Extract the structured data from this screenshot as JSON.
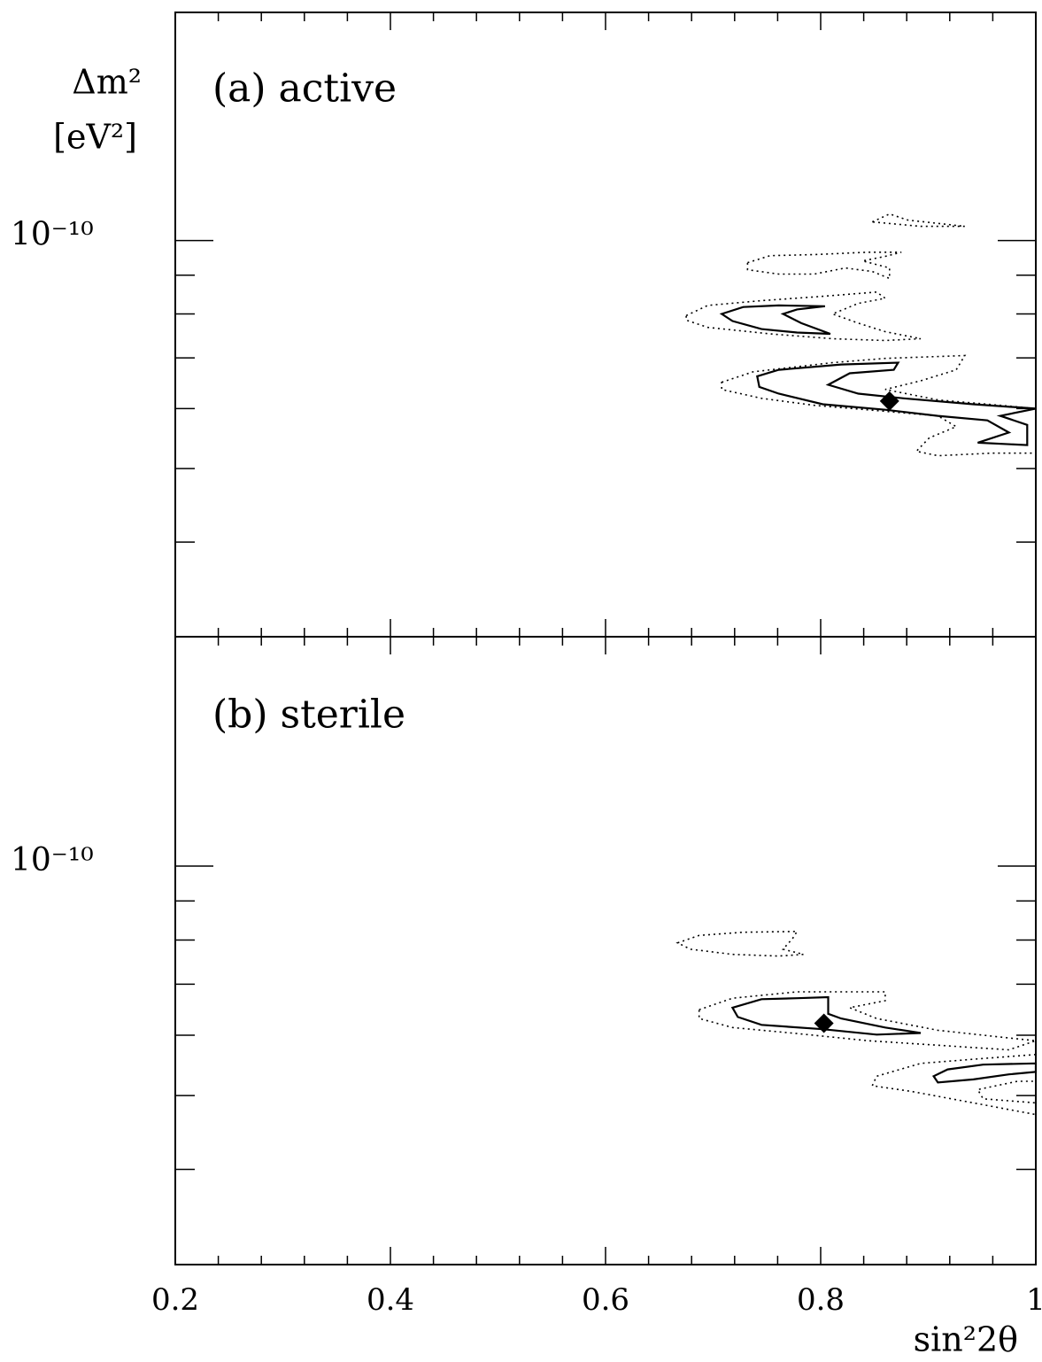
{
  "chart_data": [
    {
      "type": "contour",
      "title": "(a) active",
      "ylabel": "Δm²",
      "yunit": "[eV²]",
      "xlim": [
        0.2,
        1
      ],
      "xticks": [
        0.2,
        0.4,
        0.6,
        0.8,
        1
      ],
      "xminor_ticks": [
        0.24,
        0.28,
        0.32,
        0.36,
        0.44,
        0.48,
        0.52,
        0.56,
        0.64,
        0.68,
        0.72,
        0.76,
        0.84,
        0.88,
        0.92,
        0.96
      ],
      "ylim": [
        3e-11,
        2e-10
      ],
      "log_y": true,
      "yticks": [
        {
          "value": 1e-10,
          "label": "10⁻¹⁰"
        }
      ],
      "yminor_ticks": [
        9e-11,
        8e-11,
        7e-11,
        6e-11,
        5e-11,
        4e-11
      ],
      "contours": [
        {
          "style": "dotted",
          "x": [
            0.848,
            0.864,
            0.881,
            0.934,
            0.893
          ],
          "y": [
            1.058e-10,
            1.084e-10,
            1.064e-10,
            1.044e-10,
            1.044e-10
          ]
        },
        {
          "style": "dotted",
          "x": [
            0.732,
            0.753,
            0.794,
            0.844,
            0.875,
            0.86,
            0.839,
            0.864,
            0.864,
            0.848,
            0.823,
            0.794,
            0.761,
            0.732
          ],
          "y": [
            9.35e-11,
            9.55e-11,
            9.58e-11,
            9.65e-11,
            9.65e-11,
            9.53e-11,
            9.4e-11,
            9.2e-11,
            8.91e-11,
            9.1e-11,
            9.2e-11,
            9.03e-11,
            9.03e-11,
            9.15e-11
          ]
        },
        {
          "style": "dotted",
          "x": [
            0.675,
            0.695,
            0.745,
            0.802,
            0.852,
            0.86,
            0.835,
            0.811,
            0.835,
            0.86,
            0.893,
            0.86,
            0.811,
            0.753,
            0.695,
            0.675
          ],
          "y": [
            7.96e-11,
            8.21e-11,
            8.33e-11,
            8.44e-11,
            8.55e-11,
            8.39e-11,
            8.26e-11,
            8e-11,
            7.78e-11,
            7.58e-11,
            7.42e-11,
            7.38e-11,
            7.42e-11,
            7.53e-11,
            7.68e-11,
            7.85e-11
          ]
        },
        {
          "style": "solid",
          "x": [
            0.708,
            0.728,
            0.761,
            0.804,
            0.778,
            0.765,
            0.782,
            0.809,
            0.778,
            0.745,
            0.718
          ],
          "y": [
            8e-11,
            8.17e-11,
            8.21e-11,
            8.19e-11,
            8.11e-11,
            8e-11,
            7.78e-11,
            7.53e-11,
            7.56e-11,
            7.64e-11,
            7.83e-11
          ]
        },
        {
          "style": "dotted",
          "x": [
            0.708,
            0.737,
            0.811,
            0.86,
            0.934,
            0.926,
            0.893,
            0.86,
            0.909,
            0.967,
            1.0,
            1.0,
            0.959,
            0.909,
            0.889,
            0.901,
            0.926,
            0.909,
            0.86,
            0.794,
            0.745,
            0.708
          ],
          "y": [
            6.5e-11,
            6.71e-11,
            6.9e-11,
            6.99e-11,
            7.05e-11,
            6.75e-11,
            6.53e-11,
            6.36e-11,
            6.16e-11,
            6.06e-11,
            6e-11,
            5.24e-11,
            5.24e-11,
            5.2e-11,
            5.27e-11,
            5.49e-11,
            5.68e-11,
            5.87e-11,
            5.95e-11,
            6.06e-11,
            6.19e-11,
            6.36e-11
          ]
        },
        {
          "style": "solid",
          "x": [
            0.741,
            0.761,
            0.819,
            0.872,
            0.868,
            0.827,
            0.807,
            0.835,
            0.877,
            0.942,
            1.0,
            0.967,
            0.992,
            0.992,
            0.946,
            0.975,
            0.955,
            0.909,
            0.86,
            0.802,
            0.761,
            0.743
          ],
          "y": [
            6.62e-11,
            6.75e-11,
            6.86e-11,
            6.9e-11,
            6.75e-11,
            6.68e-11,
            6.45e-11,
            6.28e-11,
            6.19e-11,
            6.08e-11,
            6e-11,
            5.87e-11,
            5.71e-11,
            5.37e-11,
            5.41e-11,
            5.58e-11,
            5.79e-11,
            5.87e-11,
            5.98e-11,
            6.08e-11,
            6.28e-11,
            6.41e-11
          ]
        }
      ],
      "best_fit": {
        "x": 0.864,
        "y": 6.14e-11
      }
    },
    {
      "type": "contour",
      "title": "(b) sterile",
      "xlabel": "sin²2θ",
      "xlim": [
        0.2,
        1
      ],
      "xticks": [
        0.2,
        0.4,
        0.6,
        0.8,
        1
      ],
      "xminor_ticks": [
        0.24,
        0.28,
        0.32,
        0.36,
        0.44,
        0.48,
        0.52,
        0.56,
        0.64,
        0.68,
        0.72,
        0.76,
        0.84,
        0.88,
        0.92,
        0.96
      ],
      "ylim": [
        3e-11,
        2e-10
      ],
      "log_y": true,
      "yticks": [
        {
          "value": 1e-10,
          "label": "10⁻¹⁰"
        }
      ],
      "yminor_ticks": [
        9e-11,
        8e-11,
        7e-11,
        6e-11,
        5e-11,
        4e-11
      ],
      "contours": [
        {
          "style": "dotted",
          "x": [
            0.667,
            0.687,
            0.728,
            0.778,
            0.774,
            0.765,
            0.784,
            0.761,
            0.718,
            0.679
          ],
          "y": [
            7.93e-11,
            8.11e-11,
            8.19e-11,
            8.21e-11,
            8.04e-11,
            7.78e-11,
            7.66e-11,
            7.62e-11,
            7.66e-11,
            7.78e-11
          ]
        },
        {
          "style": "dotted",
          "x": [
            0.687,
            0.718,
            0.778,
            0.86,
            0.86,
            0.827,
            0.852,
            0.909,
            0.975,
            1.0,
            0.975,
            0.909,
            0.844,
            0.778,
            0.718,
            0.687
          ],
          "y": [
            6.48e-11,
            6.71e-11,
            6.84e-11,
            6.84e-11,
            6.66e-11,
            6.52e-11,
            6.31e-11,
            6.09e-11,
            5.95e-11,
            5.9e-11,
            5.74e-11,
            5.82e-11,
            5.9e-11,
            6.03e-11,
            6.14e-11,
            6.31e-11
          ]
        },
        {
          "style": "dotted",
          "x": [
            1.0,
            0.942,
            0.893,
            0.852,
            0.848,
            0.885,
            0.942,
            1.0,
            1.0,
            0.951,
            0.946,
            0.983,
            1.0
          ],
          "y": [
            5.66e-11,
            5.58e-11,
            5.51e-11,
            5.3e-11,
            5.15e-11,
            5.06e-11,
            4.89e-11,
            4.72e-11,
            4.89e-11,
            4.95e-11,
            5.09e-11,
            5.22e-11,
            5.22e-11
          ]
        },
        {
          "style": "solid",
          "x": [
            0.718,
            0.745,
            0.778,
            0.807,
            0.807,
            0.819,
            0.86,
            0.893,
            0.852,
            0.802,
            0.745,
            0.723
          ],
          "y": [
            6.52e-11,
            6.69e-11,
            6.71e-11,
            6.73e-11,
            6.4e-11,
            6.31e-11,
            6.14e-11,
            6.04e-11,
            6.01e-11,
            6.11e-11,
            6.19e-11,
            6.34e-11
          ]
        },
        {
          "style": "solid",
          "x": [
            1.0,
            0.951,
            0.918,
            0.905,
            0.909,
            0.942,
            0.975,
            1.0
          ],
          "y": [
            5.51e-11,
            5.49e-11,
            5.41e-11,
            5.3e-11,
            5.2e-11,
            5.25e-11,
            5.33e-11,
            5.37e-11
          ]
        }
      ],
      "best_fit": {
        "x": 0.803,
        "y": 6.22e-11
      }
    }
  ]
}
